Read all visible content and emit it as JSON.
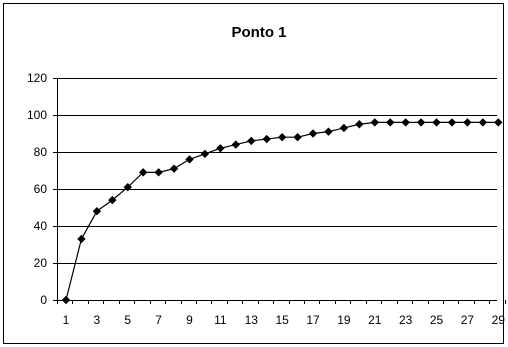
{
  "chart_data": {
    "type": "line",
    "title": "Ponto 1",
    "xlabel": "",
    "ylabel": "",
    "x": [
      1,
      2,
      3,
      4,
      5,
      6,
      7,
      8,
      9,
      10,
      11,
      12,
      13,
      14,
      15,
      16,
      17,
      18,
      19,
      20,
      21,
      22,
      23,
      24,
      25,
      26,
      27,
      28,
      29
    ],
    "series": [
      {
        "values": [
          0,
          33,
          48,
          54,
          61,
          69,
          69,
          71,
          76,
          79,
          82,
          84,
          86,
          87,
          88,
          88,
          90,
          91,
          93,
          95,
          96,
          96,
          96,
          96,
          96,
          96,
          96,
          96,
          96
        ]
      }
    ],
    "ylim": [
      0,
      120
    ],
    "yticks": [
      0,
      20,
      40,
      60,
      80,
      100,
      120
    ],
    "xticks": [
      1,
      3,
      5,
      7,
      9,
      11,
      13,
      15,
      17,
      19,
      21,
      23,
      25,
      27,
      29
    ],
    "grid": "horizontal",
    "legend": "none",
    "colors": {
      "line": "#000000",
      "marker": "#000000",
      "grid": "#000000",
      "background": "#ffffff",
      "frame": "#000000"
    }
  }
}
